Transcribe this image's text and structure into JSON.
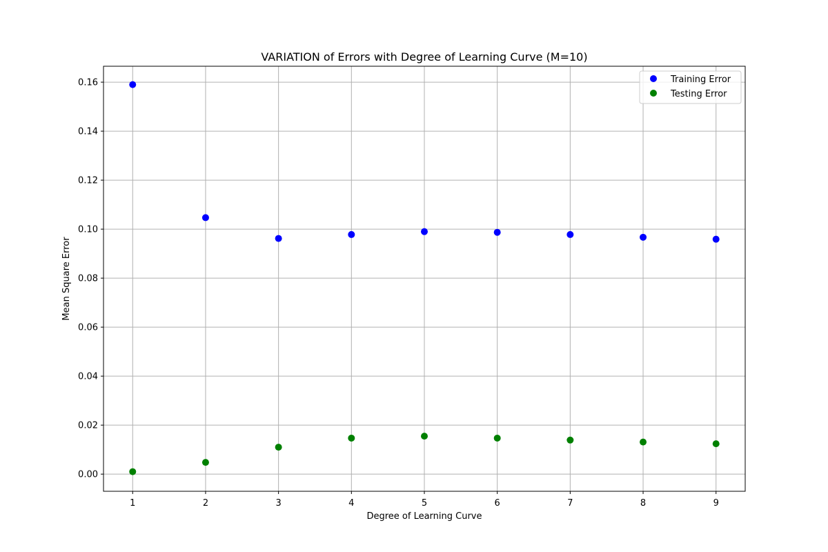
{
  "chart_data": {
    "type": "scatter",
    "title": "VARIATION of Errors with Degree of Learning Curve (M=10)",
    "xlabel": "Degree of Learning Curve",
    "ylabel": "Mean Square Error",
    "x": [
      1,
      2,
      3,
      4,
      5,
      6,
      7,
      8,
      9
    ],
    "xlim": [
      0.6,
      9.4
    ],
    "ylim": [
      -0.007,
      0.1665
    ],
    "xticks": [
      1,
      2,
      3,
      4,
      5,
      6,
      7,
      8,
      9
    ],
    "xtick_labels": [
      "1",
      "2",
      "3",
      "4",
      "5",
      "6",
      "7",
      "8",
      "9"
    ],
    "yticks": [
      0.0,
      0.02,
      0.04,
      0.06,
      0.08,
      0.1,
      0.12,
      0.14,
      0.16
    ],
    "ytick_labels": [
      "0.00",
      "0.02",
      "0.04",
      "0.06",
      "0.08",
      "0.10",
      "0.12",
      "0.14",
      "0.16"
    ],
    "grid": true,
    "legend_position": "top-right",
    "series": [
      {
        "name": "Training Error",
        "color": "#0000ff",
        "values": [
          0.159,
          0.1047,
          0.0962,
          0.0978,
          0.099,
          0.0987,
          0.0978,
          0.0967,
          0.0959
        ]
      },
      {
        "name": "Testing Error",
        "color": "#008000",
        "values": [
          0.001,
          0.0048,
          0.011,
          0.0147,
          0.0155,
          0.0147,
          0.0139,
          0.0131,
          0.0124
        ]
      }
    ]
  }
}
